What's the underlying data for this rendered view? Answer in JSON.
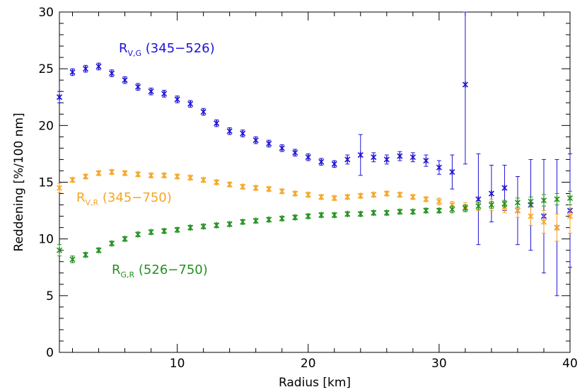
{
  "chart_data": {
    "type": "scatter",
    "title": "",
    "xlabel": "Radius [km]",
    "ylabel": "Reddening [%/100 nm]",
    "xlim": [
      1,
      40
    ],
    "ylim": [
      0,
      30
    ],
    "xticks": [
      10,
      20,
      30,
      40
    ],
    "yticks": [
      0,
      5,
      10,
      15,
      20,
      25,
      30
    ],
    "grid": false,
    "legend": "inline labels",
    "series": [
      {
        "name": "R_V,G (345-526)",
        "label_main": "R",
        "label_sub": "V,G",
        "label_range": " (345−526)",
        "color": "#1f14d6",
        "x": [
          1,
          2,
          3,
          4,
          5,
          6,
          7,
          8,
          9,
          10,
          11,
          12,
          13,
          14,
          15,
          16,
          17,
          18,
          19,
          20,
          21,
          22,
          23,
          24,
          25,
          26,
          27,
          28,
          29,
          30,
          31,
          32,
          33,
          34,
          35,
          36,
          37,
          38,
          39,
          40
        ],
        "values": [
          22.5,
          24.7,
          25.0,
          25.2,
          24.6,
          24.0,
          23.4,
          23.0,
          22.8,
          22.3,
          21.9,
          21.2,
          20.2,
          19.5,
          19.3,
          18.7,
          18.4,
          18.0,
          17.6,
          17.2,
          16.8,
          16.6,
          17.0,
          17.4,
          17.2,
          17.0,
          17.3,
          17.2,
          16.9,
          16.3,
          15.9,
          23.6,
          13.5,
          14.0,
          14.5,
          12.5,
          13.0,
          12.0,
          11.0,
          12.5
        ],
        "errors": [
          0.5,
          0.3,
          0.3,
          0.3,
          0.3,
          0.3,
          0.3,
          0.3,
          0.3,
          0.3,
          0.3,
          0.3,
          0.3,
          0.3,
          0.3,
          0.3,
          0.3,
          0.3,
          0.3,
          0.3,
          0.3,
          0.3,
          0.4,
          1.8,
          0.4,
          0.4,
          0.4,
          0.4,
          0.5,
          0.6,
          1.5,
          7.0,
          4.0,
          2.5,
          2.0,
          3.0,
          4.0,
          5.0,
          6.0,
          5.0
        ]
      },
      {
        "name": "R_V,R (345-750)",
        "label_main": "R",
        "label_sub": "V,R",
        "label_range": " (345−750)",
        "color": "#f5a623",
        "x": [
          1,
          2,
          3,
          4,
          5,
          6,
          7,
          8,
          9,
          10,
          11,
          12,
          13,
          14,
          15,
          16,
          17,
          18,
          19,
          20,
          21,
          22,
          23,
          24,
          25,
          26,
          27,
          28,
          29,
          30,
          31,
          32,
          33,
          34,
          35,
          36,
          37,
          38,
          39,
          40
        ],
        "values": [
          14.5,
          15.2,
          15.5,
          15.8,
          15.9,
          15.8,
          15.7,
          15.6,
          15.6,
          15.5,
          15.4,
          15.2,
          15.0,
          14.8,
          14.6,
          14.5,
          14.4,
          14.2,
          14.0,
          13.9,
          13.7,
          13.6,
          13.7,
          13.8,
          13.9,
          14.0,
          13.9,
          13.7,
          13.5,
          13.3,
          13.0,
          12.8,
          12.9,
          13.0,
          12.8,
          12.5,
          12.0,
          11.5,
          11.0,
          12.0
        ],
        "errors": [
          0.4,
          0.2,
          0.2,
          0.2,
          0.2,
          0.2,
          0.2,
          0.2,
          0.2,
          0.2,
          0.2,
          0.2,
          0.2,
          0.2,
          0.2,
          0.2,
          0.2,
          0.2,
          0.2,
          0.2,
          0.2,
          0.2,
          0.2,
          0.2,
          0.2,
          0.2,
          0.2,
          0.2,
          0.2,
          0.3,
          0.3,
          0.4,
          0.4,
          0.5,
          0.5,
          0.6,
          0.8,
          1.0,
          1.2,
          1.5
        ]
      },
      {
        "name": "R_G,R (526-750)",
        "label_main": "R",
        "label_sub": "G,R",
        "label_range": " (526−750)",
        "color": "#23911f",
        "x": [
          1,
          2,
          3,
          4,
          5,
          6,
          7,
          8,
          9,
          10,
          11,
          12,
          13,
          14,
          15,
          16,
          17,
          18,
          19,
          20,
          21,
          22,
          23,
          24,
          25,
          26,
          27,
          28,
          29,
          30,
          31,
          32,
          33,
          34,
          35,
          36,
          37,
          38,
          39,
          40
        ],
        "values": [
          9.0,
          8.2,
          8.6,
          9.0,
          9.6,
          10.0,
          10.4,
          10.6,
          10.7,
          10.8,
          11.0,
          11.1,
          11.2,
          11.3,
          11.5,
          11.6,
          11.7,
          11.8,
          11.9,
          12.0,
          12.1,
          12.1,
          12.2,
          12.2,
          12.3,
          12.3,
          12.4,
          12.4,
          12.5,
          12.5,
          12.6,
          12.7,
          12.9,
          13.0,
          13.1,
          13.2,
          13.3,
          13.4,
          13.5,
          13.6
        ],
        "errors": [
          0.5,
          0.3,
          0.2,
          0.2,
          0.2,
          0.2,
          0.2,
          0.2,
          0.2,
          0.2,
          0.2,
          0.2,
          0.2,
          0.2,
          0.2,
          0.2,
          0.2,
          0.2,
          0.2,
          0.2,
          0.2,
          0.2,
          0.2,
          0.2,
          0.2,
          0.2,
          0.2,
          0.2,
          0.2,
          0.2,
          0.3,
          0.3,
          0.3,
          0.3,
          0.3,
          0.4,
          0.4,
          0.5,
          0.5,
          0.6
        ]
      }
    ]
  }
}
